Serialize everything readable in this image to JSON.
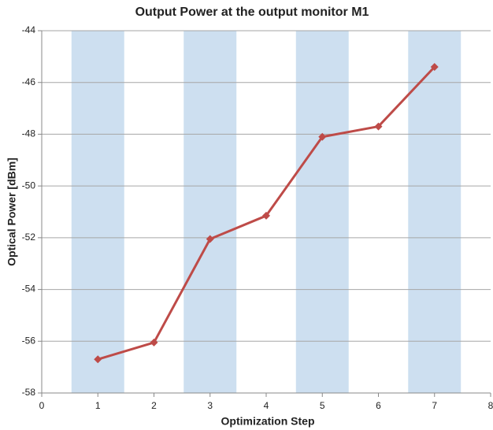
{
  "chart_data": {
    "type": "line",
    "title": "Output Power at the output monitor M1",
    "x_label": "Optimization Step",
    "y_label": "Optical Power [dBm]",
    "series": [
      {
        "name": "M1",
        "color": "#be4b48",
        "x": [
          1,
          2,
          3,
          4,
          5,
          6,
          7
        ],
        "values": [
          -56.7,
          -56.05,
          -52.05,
          -51.15,
          -48.1,
          -47.7,
          -45.4
        ]
      }
    ],
    "xlim": [
      0,
      8
    ],
    "xticks": [
      0,
      1,
      2,
      3,
      4,
      5,
      6,
      7,
      8
    ],
    "ylim": [
      -58,
      -44
    ],
    "yticks": [
      -58,
      -56,
      -54,
      -52,
      -50,
      -48,
      -46,
      -44
    ],
    "grid": true,
    "band_color": "#cddff0"
  }
}
